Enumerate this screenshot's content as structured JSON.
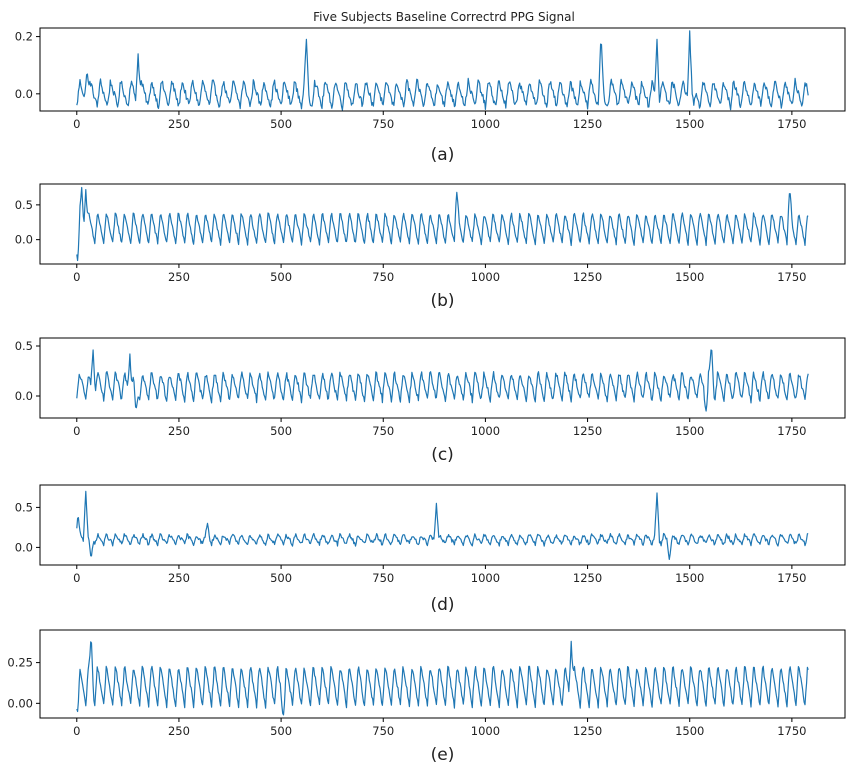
{
  "figure": {
    "title": "Five Subjects Baseline Correctrd PPG Signal",
    "line_color": "#1f77b4"
  },
  "chart_data": [
    {
      "type": "line",
      "caption": "(a)",
      "x_ticks": [
        0,
        250,
        500,
        750,
        1000,
        1250,
        1500,
        1750
      ],
      "y_ticks": [
        0.0,
        0.2
      ],
      "y_tick_labels": [
        "0.0",
        "0.2"
      ],
      "xlim": [
        -90,
        1880
      ],
      "ylim": [
        -0.06,
        0.23
      ],
      "x_range": [
        0,
        1790
      ],
      "period": 25,
      "baseline": 0.0,
      "amplitude": 0.09,
      "noise": 0.012,
      "spikes": [
        {
          "x": 25,
          "y": 0.09
        },
        {
          "x": 150,
          "y": 0.14
        },
        {
          "x": 562,
          "y": 0.19
        },
        {
          "x": 1283,
          "y": 0.2
        },
        {
          "x": 1295,
          "y": -0.04
        },
        {
          "x": 1420,
          "y": 0.19
        },
        {
          "x": 1500,
          "y": 0.22
        },
        {
          "x": 1510,
          "y": -0.04
        }
      ]
    },
    {
      "type": "line",
      "caption": "(b)",
      "x_ticks": [
        0,
        250,
        500,
        750,
        1000,
        1250,
        1500,
        1750
      ],
      "y_ticks": [
        0.0,
        0.5
      ],
      "y_tick_labels": [
        "0.0",
        "0.5"
      ],
      "xlim": [
        -90,
        1880
      ],
      "ylim": [
        -0.35,
        0.8
      ],
      "x_range": [
        0,
        1790
      ],
      "period": 22,
      "baseline": 0.17,
      "amplitude": 0.45,
      "noise": 0.03,
      "spikes": [
        {
          "x": 2,
          "y": -0.3
        },
        {
          "x": 12,
          "y": 0.75
        },
        {
          "x": 22,
          "y": 0.72
        },
        {
          "x": 930,
          "y": 0.68
        },
        {
          "x": 1745,
          "y": 0.72
        }
      ]
    },
    {
      "type": "line",
      "caption": "(c)",
      "x_ticks": [
        0,
        250,
        500,
        750,
        1000,
        1250,
        1500,
        1750
      ],
      "y_ticks": [
        0.0,
        0.5
      ],
      "y_tick_labels": [
        "0.0",
        "0.5"
      ],
      "xlim": [
        -90,
        1880
      ],
      "ylim": [
        -0.22,
        0.58
      ],
      "x_range": [
        0,
        1790
      ],
      "period": 22,
      "baseline": 0.1,
      "amplitude": 0.28,
      "noise": 0.03,
      "spikes": [
        {
          "x": 40,
          "y": 0.46
        },
        {
          "x": 130,
          "y": 0.42
        },
        {
          "x": 145,
          "y": -0.16
        },
        {
          "x": 1540,
          "y": -0.15
        },
        {
          "x": 1553,
          "y": 0.52
        }
      ]
    },
    {
      "type": "line",
      "caption": "(d)",
      "x_ticks": [
        0,
        250,
        500,
        750,
        1000,
        1250,
        1500,
        1750
      ],
      "y_ticks": [
        0.0,
        0.5
      ],
      "y_tick_labels": [
        "0.0",
        "0.5"
      ],
      "xlim": [
        -90,
        1880
      ],
      "ylim": [
        -0.22,
        0.78
      ],
      "x_range": [
        0,
        1790
      ],
      "period": 22,
      "baseline": 0.1,
      "amplitude": 0.12,
      "noise": 0.025,
      "spikes": [
        {
          "x": 3,
          "y": 0.42
        },
        {
          "x": 22,
          "y": 0.7
        },
        {
          "x": 35,
          "y": -0.15
        },
        {
          "x": 320,
          "y": 0.3
        },
        {
          "x": 880,
          "y": 0.55
        },
        {
          "x": 1420,
          "y": 0.68
        },
        {
          "x": 1450,
          "y": -0.15
        }
      ]
    },
    {
      "type": "line",
      "caption": "(e)",
      "x_ticks": [
        0,
        250,
        500,
        750,
        1000,
        1250,
        1500,
        1750
      ],
      "y_ticks": [
        0.0,
        0.25
      ],
      "y_tick_labels": [
        "0.00",
        "0.25"
      ],
      "xlim": [
        -90,
        1880
      ],
      "ylim": [
        -0.09,
        0.45
      ],
      "x_range": [
        0,
        1790
      ],
      "period": 22,
      "baseline": 0.11,
      "amplitude": 0.25,
      "noise": 0.015,
      "spikes": [
        {
          "x": 2,
          "y": -0.05
        },
        {
          "x": 35,
          "y": 0.42
        },
        {
          "x": 505,
          "y": -0.08
        },
        {
          "x": 1210,
          "y": 0.38
        }
      ]
    }
  ]
}
